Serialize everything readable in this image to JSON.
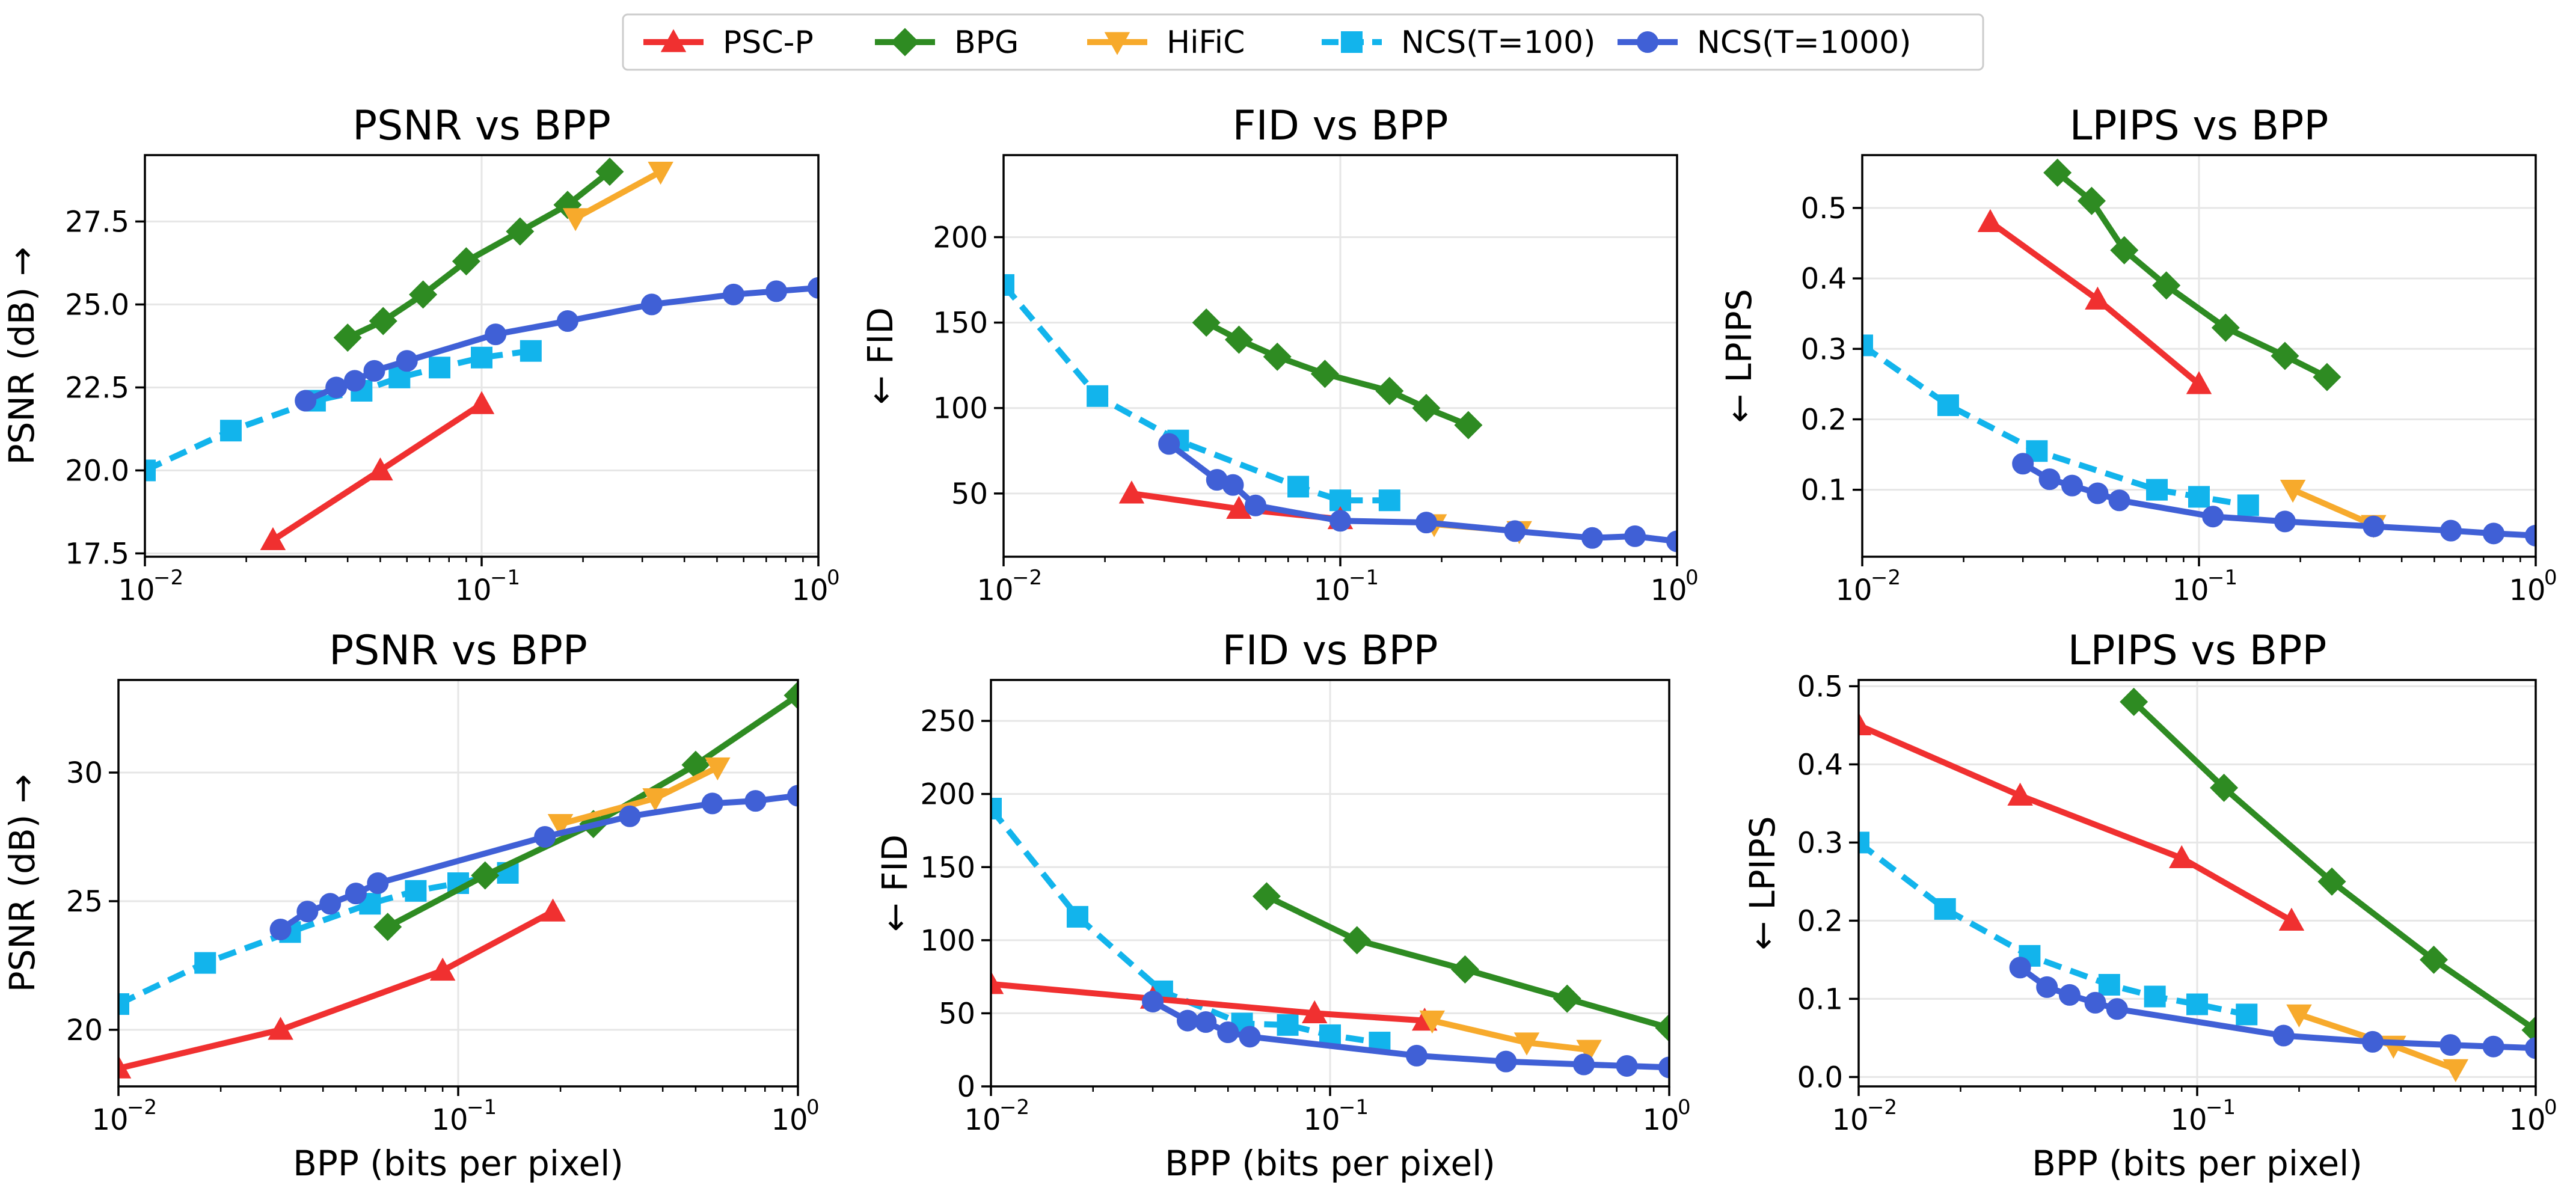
{
  "chart_data": {
    "type": "line",
    "legend": {
      "placement": "top-center",
      "entries": [
        {
          "label": "PSC-P",
          "color": "#f03030",
          "marker": "triangle-up",
          "dash": "solid"
        },
        {
          "label": "BPG",
          "color": "#2e8b22",
          "marker": "diamond",
          "dash": "solid"
        },
        {
          "label": "HiFiC",
          "color": "#f7aa2c",
          "marker": "triangle-down",
          "dash": "solid"
        },
        {
          "label": "NCS(T=100)",
          "color": "#12b4ec",
          "marker": "square",
          "dash": "dashed"
        },
        {
          "label": "NCS(T=1000)",
          "color": "#4060d6",
          "marker": "circle",
          "dash": "solid"
        }
      ]
    },
    "x_tick_labels": [
      {
        "base": "10",
        "exp": "−2"
      },
      {
        "base": "10",
        "exp": "−1"
      },
      {
        "base": "10",
        "exp": "0"
      }
    ],
    "panels": [
      {
        "title": "PSNR vs BPP",
        "xlabel": "",
        "ylabel": "PSNR (dB) →",
        "xscale": "log",
        "xlim": [
          0.01,
          1
        ],
        "ylim": [
          17.4,
          29.5
        ],
        "yticks": [
          17.5,
          20.0,
          22.5,
          25.0,
          27.5
        ],
        "ytick_labels": [
          "17.5",
          "20.0",
          "22.5",
          "25.0",
          "27.5"
        ],
        "grid": true,
        "series": [
          {
            "name": "PSC-P",
            "x": [
              0.024,
              0.05,
              0.1
            ],
            "y": [
              17.9,
              20.0,
              22.0
            ]
          },
          {
            "name": "BPG",
            "x": [
              0.04,
              0.051,
              0.067,
              0.09,
              0.13,
              0.18,
              0.24
            ],
            "y": [
              24.0,
              24.5,
              25.3,
              26.3,
              27.2,
              28.0,
              29.0
            ]
          },
          {
            "name": "HiFiC",
            "x": [
              0.19,
              0.34
            ],
            "y": [
              27.6,
              29.0
            ]
          },
          {
            "name": "NCS(T=100)",
            "x": [
              0.01,
              0.018,
              0.032,
              0.044,
              0.057,
              0.075,
              0.1,
              0.14
            ],
            "y": [
              20.0,
              21.2,
              22.1,
              22.4,
              22.8,
              23.1,
              23.4,
              23.6
            ]
          },
          {
            "name": "NCS(T=1000)",
            "x": [
              0.03,
              0.037,
              0.042,
              0.048,
              0.06,
              0.11,
              0.18,
              0.32,
              0.56,
              0.75,
              1.0
            ],
            "y": [
              22.1,
              22.5,
              22.7,
              23.0,
              23.3,
              24.1,
              24.5,
              25.0,
              25.3,
              25.4,
              25.5
            ]
          }
        ]
      },
      {
        "title": "FID vs BPP",
        "xlabel": "",
        "ylabel": "← FID",
        "xscale": "log",
        "xlim": [
          0.01,
          1
        ],
        "ylim": [
          13,
          248
        ],
        "yticks": [
          50,
          100,
          150,
          200
        ],
        "ytick_labels": [
          "50",
          "100",
          "150",
          "200"
        ],
        "grid": true,
        "series": [
          {
            "name": "PSC-P",
            "x": [
              0.024,
              0.05,
              0.1
            ],
            "y": [
              50,
              41,
              35
            ]
          },
          {
            "name": "BPG",
            "x": [
              0.04,
              0.05,
              0.065,
              0.09,
              0.14,
              0.18,
              0.24
            ],
            "y": [
              150,
              140,
              130,
              120,
              110,
              100,
              90
            ]
          },
          {
            "name": "HiFiC",
            "x": [
              0.19,
              0.34
            ],
            "y": [
              32,
              28
            ]
          },
          {
            "name": "NCS(T=100)",
            "x": [
              0.01,
              0.019,
              0.033,
              0.075,
              0.1,
              0.14
            ],
            "y": [
              172,
              107,
              81,
              54,
              46,
              46
            ]
          },
          {
            "name": "NCS(T=1000)",
            "x": [
              0.031,
              0.043,
              0.048,
              0.056,
              0.1,
              0.18,
              0.33,
              0.56,
              0.75,
              1.0
            ],
            "y": [
              79,
              58,
              55,
              43,
              34,
              33,
              28,
              24,
              25,
              22
            ]
          }
        ]
      },
      {
        "title": "LPIPS vs BPP",
        "xlabel": "",
        "ylabel": "← LPIPS",
        "xscale": "log",
        "xlim": [
          0.01,
          1
        ],
        "ylim": [
          0.005,
          0.575
        ],
        "yticks": [
          0.1,
          0.2,
          0.3,
          0.4,
          0.5
        ],
        "ytick_labels": [
          "0.1",
          "0.2",
          "0.3",
          "0.4",
          "0.5"
        ],
        "grid": true,
        "series": [
          {
            "name": "PSC-P",
            "x": [
              0.024,
              0.05,
              0.1
            ],
            "y": [
              0.48,
              0.37,
              0.25
            ]
          },
          {
            "name": "BPG",
            "x": [
              0.038,
              0.048,
              0.06,
              0.08,
              0.12,
              0.18,
              0.24
            ],
            "y": [
              0.55,
              0.51,
              0.44,
              0.39,
              0.33,
              0.29,
              0.26
            ]
          },
          {
            "name": "HiFiC",
            "x": [
              0.19,
              0.33
            ],
            "y": [
              0.1,
              0.05
            ]
          },
          {
            "name": "NCS(T=100)",
            "x": [
              0.01,
              0.018,
              0.033,
              0.075,
              0.1,
              0.14
            ],
            "y": [
              0.305,
              0.22,
              0.155,
              0.1,
              0.09,
              0.078
            ]
          },
          {
            "name": "NCS(T=1000)",
            "x": [
              0.03,
              0.036,
              0.042,
              0.05,
              0.058,
              0.11,
              0.18,
              0.33,
              0.56,
              0.75,
              1.0
            ],
            "y": [
              0.137,
              0.115,
              0.106,
              0.095,
              0.085,
              0.062,
              0.055,
              0.048,
              0.042,
              0.038,
              0.035
            ]
          }
        ]
      },
      {
        "title": "PSNR vs BPP",
        "xlabel": "BPP (bits per pixel)",
        "ylabel": "PSNR (dB) →",
        "xscale": "log",
        "xlim": [
          0.01,
          1
        ],
        "ylim": [
          17.8,
          33.6
        ],
        "yticks": [
          20,
          25,
          30
        ],
        "ytick_labels": [
          "20",
          "25",
          "30"
        ],
        "grid": true,
        "series": [
          {
            "name": "PSC-P",
            "x": [
              0.01,
              0.03,
              0.09,
              0.19
            ],
            "y": [
              18.5,
              20.0,
              22.3,
              24.6
            ]
          },
          {
            "name": "BPG",
            "x": [
              0.062,
              0.12,
              0.25,
              0.5,
              1.0
            ],
            "y": [
              24.0,
              26.0,
              28.0,
              30.3,
              33.0
            ]
          },
          {
            "name": "HiFiC",
            "x": [
              0.2,
              0.38,
              0.58
            ],
            "y": [
              28.0,
              29.0,
              30.2
            ]
          },
          {
            "name": "NCS(T=100)",
            "x": [
              0.01,
              0.018,
              0.032,
              0.055,
              0.075,
              0.1,
              0.14
            ],
            "y": [
              21.0,
              22.6,
              23.8,
              24.9,
              25.4,
              25.7,
              26.1
            ]
          },
          {
            "name": "NCS(T=1000)",
            "x": [
              0.03,
              0.036,
              0.042,
              0.05,
              0.058,
              0.18,
              0.32,
              0.56,
              0.75,
              1.0
            ],
            "y": [
              23.9,
              24.6,
              24.9,
              25.3,
              25.7,
              27.5,
              28.3,
              28.8,
              28.9,
              29.1
            ]
          }
        ]
      },
      {
        "title": "FID vs BPP",
        "xlabel": "BPP (bits per pixel)",
        "ylabel": "← FID",
        "xscale": "log",
        "xlim": [
          0.01,
          1
        ],
        "ylim": [
          0,
          278
        ],
        "yticks": [
          0,
          50,
          100,
          150,
          200,
          250
        ],
        "ytick_labels": [
          "0",
          "50",
          "100",
          "150",
          "200",
          "250"
        ],
        "grid": true,
        "series": [
          {
            "name": "PSC-P",
            "x": [
              0.01,
              0.03,
              0.09,
              0.19
            ],
            "y": [
              70,
              60,
              50,
              45
            ]
          },
          {
            "name": "BPG",
            "x": [
              0.065,
              0.12,
              0.25,
              0.5,
              1.0
            ],
            "y": [
              130,
              100,
              80,
              60,
              40
            ]
          },
          {
            "name": "HiFiC",
            "x": [
              0.2,
              0.38,
              0.58
            ],
            "y": [
              45,
              30,
              25
            ]
          },
          {
            "name": "NCS(T=100)",
            "x": [
              0.01,
              0.018,
              0.032,
              0.055,
              0.075,
              0.1,
              0.14
            ],
            "y": [
              190,
              116,
              65,
              43,
              42,
              35,
              30
            ]
          },
          {
            "name": "NCS(T=1000)",
            "x": [
              0.03,
              0.038,
              0.043,
              0.05,
              0.058,
              0.18,
              0.33,
              0.56,
              0.75,
              1.0
            ],
            "y": [
              58,
              45,
              44,
              37,
              34,
              21,
              17,
              15,
              14,
              13
            ]
          }
        ]
      },
      {
        "title": "LPIPS vs BPP",
        "xlabel": "BPP (bits per pixel)",
        "ylabel": "← LPIPS",
        "xscale": "log",
        "xlim": [
          0.01,
          1
        ],
        "ylim": [
          -0.012,
          0.508
        ],
        "yticks": [
          0.0,
          0.1,
          0.2,
          0.3,
          0.4,
          0.5
        ],
        "ytick_labels": [
          "0.0",
          "0.1",
          "0.2",
          "0.3",
          "0.4",
          "0.5"
        ],
        "grid": true,
        "series": [
          {
            "name": "PSC-P",
            "x": [
              0.01,
              0.03,
              0.09,
              0.19
            ],
            "y": [
              0.45,
              0.36,
              0.28,
              0.2
            ]
          },
          {
            "name": "BPG",
            "x": [
              0.065,
              0.12,
              0.25,
              0.5,
              1.0
            ],
            "y": [
              0.48,
              0.37,
              0.25,
              0.15,
              0.06
            ]
          },
          {
            "name": "HiFiC",
            "x": [
              0.2,
              0.38,
              0.58
            ],
            "y": [
              0.08,
              0.04,
              0.01
            ]
          },
          {
            "name": "NCS(T=100)",
            "x": [
              0.01,
              0.018,
              0.032,
              0.055,
              0.075,
              0.1,
              0.14
            ],
            "y": [
              0.3,
              0.215,
              0.155,
              0.118,
              0.103,
              0.093,
              0.08
            ]
          },
          {
            "name": "NCS(T=1000)",
            "x": [
              0.03,
              0.036,
              0.042,
              0.05,
              0.058,
              0.18,
              0.33,
              0.56,
              0.75,
              1.0
            ],
            "y": [
              0.14,
              0.115,
              0.105,
              0.095,
              0.087,
              0.053,
              0.045,
              0.041,
              0.039,
              0.037
            ]
          }
        ]
      }
    ]
  }
}
